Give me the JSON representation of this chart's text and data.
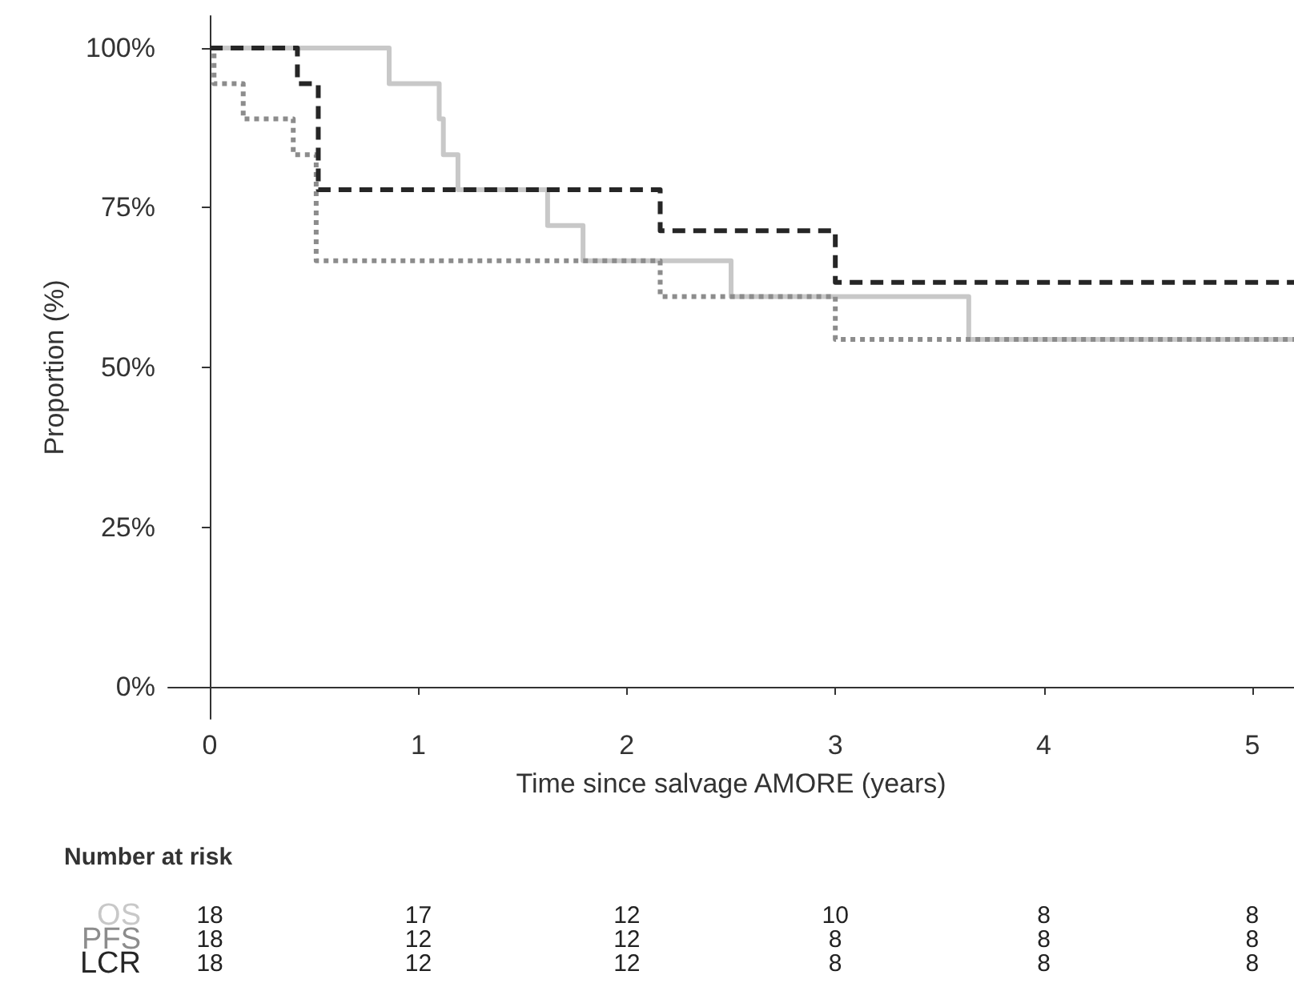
{
  "chart_data": {
    "type": "step",
    "xlabel": "Time since salvage AMORE (years)",
    "ylabel": "Proportion (%)",
    "xlim": [
      -0.2,
      5.2
    ],
    "xticks": [
      0,
      1,
      2,
      3,
      4,
      5
    ],
    "ylim": [
      -5,
      105
    ],
    "yticks": [
      {
        "value": 0,
        "label": "0%"
      },
      {
        "value": 25,
        "label": "25%"
      },
      {
        "value": 50,
        "label": "50%"
      },
      {
        "value": 75,
        "label": "75%"
      },
      {
        "value": 100,
        "label": "100%"
      }
    ],
    "grid": false,
    "legend": false,
    "marker": "none",
    "series": [
      {
        "name": "OS",
        "color": "#c8c8c8",
        "line_style": "solid",
        "x": [
          0,
          0.86,
          1.1,
          1.12,
          1.19,
          1.62,
          1.79,
          2.5,
          3.64,
          5.2
        ],
        "values": [
          100,
          94.4,
          88.9,
          83.3,
          77.8,
          72.2,
          66.7,
          61.1,
          54.4,
          54.4
        ]
      },
      {
        "name": "PFS",
        "color": "#8c8c8c",
        "line_style": "dotted",
        "x": [
          0,
          0.02,
          0.16,
          0.4,
          0.51,
          2.16,
          3.0,
          5.2
        ],
        "values": [
          100,
          94.4,
          88.9,
          83.3,
          66.7,
          61.1,
          54.4,
          54.4
        ]
      },
      {
        "name": "LCR",
        "color": "#262626",
        "line_style": "dashed",
        "x": [
          0,
          0.42,
          0.52,
          2.16,
          3.0,
          5.2
        ],
        "values": [
          100,
          94.4,
          77.8,
          71.4,
          63.3,
          63.3
        ]
      }
    ],
    "annotations": [
      "Number at risk",
      "18",
      "17",
      "12",
      "10",
      "8",
      "8",
      "18",
      "12",
      "12",
      "8",
      "8",
      "8",
      "18",
      "12",
      "12",
      "8",
      "8",
      "8"
    ]
  }
}
